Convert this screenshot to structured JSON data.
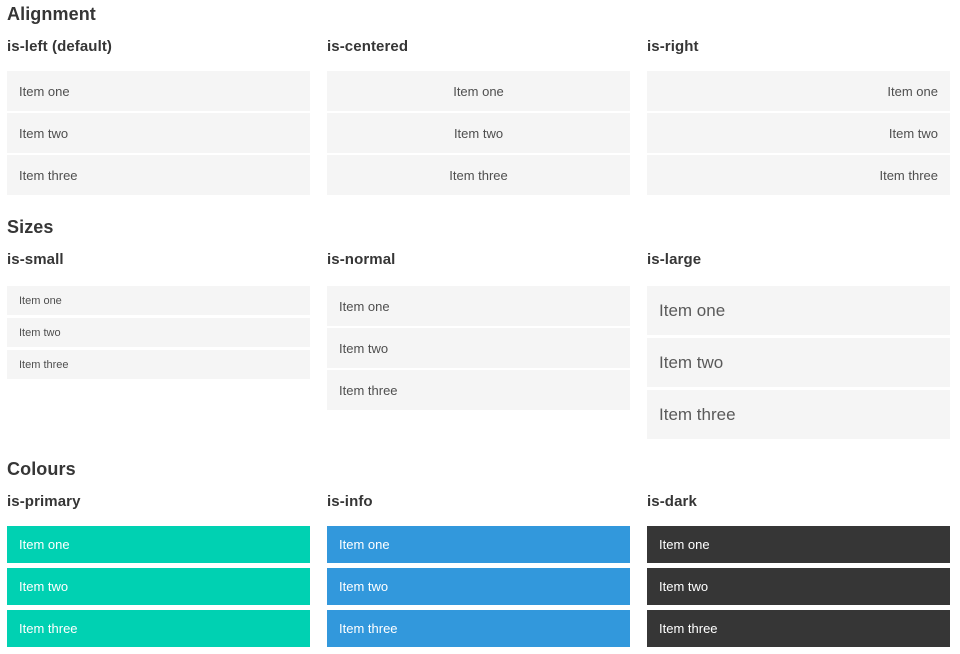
{
  "sections": [
    {
      "id": "alignment",
      "title": "Alignment",
      "columns": [
        {
          "heading": "is-left (default)",
          "variant": "align-left",
          "items": [
            "Item one",
            "Item two",
            "Item three"
          ]
        },
        {
          "heading": "is-centered",
          "variant": "align-center",
          "items": [
            "Item one",
            "Item two",
            "Item three"
          ]
        },
        {
          "heading": "is-right",
          "variant": "align-right",
          "items": [
            "Item one",
            "Item two",
            "Item three"
          ]
        }
      ]
    },
    {
      "id": "sizes",
      "title": "Sizes",
      "columns": [
        {
          "heading": "is-small",
          "variant": "size-small",
          "items": [
            "Item one",
            "Item two",
            "Item three"
          ]
        },
        {
          "heading": "is-normal",
          "variant": "size-normal",
          "items": [
            "Item one",
            "Item two",
            "Item three"
          ]
        },
        {
          "heading": "is-large",
          "variant": "size-large",
          "items": [
            "Item one",
            "Item two",
            "Item three"
          ]
        }
      ]
    },
    {
      "id": "colours",
      "title": "Colours",
      "columns": [
        {
          "heading": "is-primary",
          "variant": "colour-primary",
          "items": [
            "Item one",
            "Item two",
            "Item three"
          ]
        },
        {
          "heading": "is-info",
          "variant": "colour-info",
          "items": [
            "Item one",
            "Item two",
            "Item three"
          ]
        },
        {
          "heading": "is-dark",
          "variant": "colour-dark",
          "items": [
            "Item one",
            "Item two",
            "Item three"
          ]
        }
      ]
    }
  ],
  "colors": {
    "primary": "#00d1b2",
    "info": "#3298dc",
    "dark": "#363636",
    "item_background": "#f5f5f5",
    "item_text": "#4f4f4f",
    "heading_text": "#363636",
    "coloured_item_text": "#ffffff"
  }
}
